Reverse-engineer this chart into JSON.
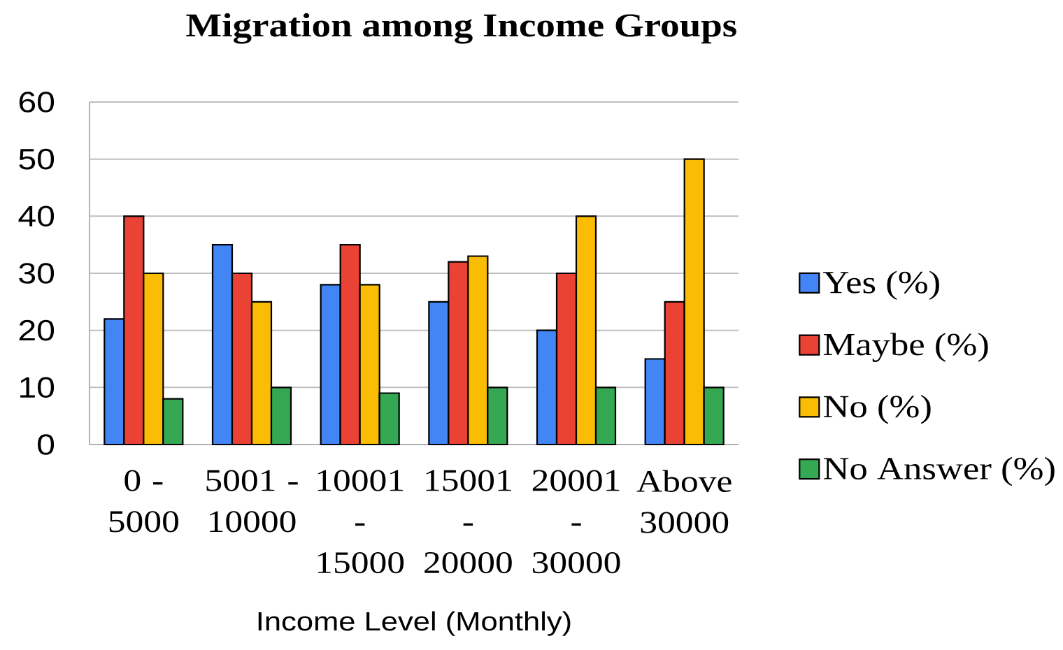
{
  "chart_data": {
    "type": "bar",
    "title": "Migration among Income Groups",
    "xlabel": "Income Level (Monthly)",
    "categories": [
      "0 - 5000",
      "5001 - 10000",
      "10001 - 15000",
      "15001 - 20000",
      "20001 - 30000",
      "Above 30000"
    ],
    "series": [
      {
        "name": "Yes (%)",
        "color": "#4285f4",
        "values": [
          22,
          35,
          28,
          25,
          20,
          15
        ]
      },
      {
        "name": "Maybe (%)",
        "color": "#ea4335",
        "values": [
          40,
          30,
          35,
          32,
          30,
          25
        ]
      },
      {
        "name": "No (%)",
        "color": "#fbbc04",
        "values": [
          30,
          25,
          28,
          33,
          40,
          50
        ]
      },
      {
        "name": "No Answer (%)",
        "color": "#34a853",
        "values": [
          8,
          10,
          9,
          10,
          10,
          10
        ]
      }
    ],
    "ylim": [
      0,
      60
    ],
    "yticks": [
      0,
      10,
      20,
      30,
      40,
      50,
      60
    ],
    "grid": "y",
    "legend": "right"
  }
}
